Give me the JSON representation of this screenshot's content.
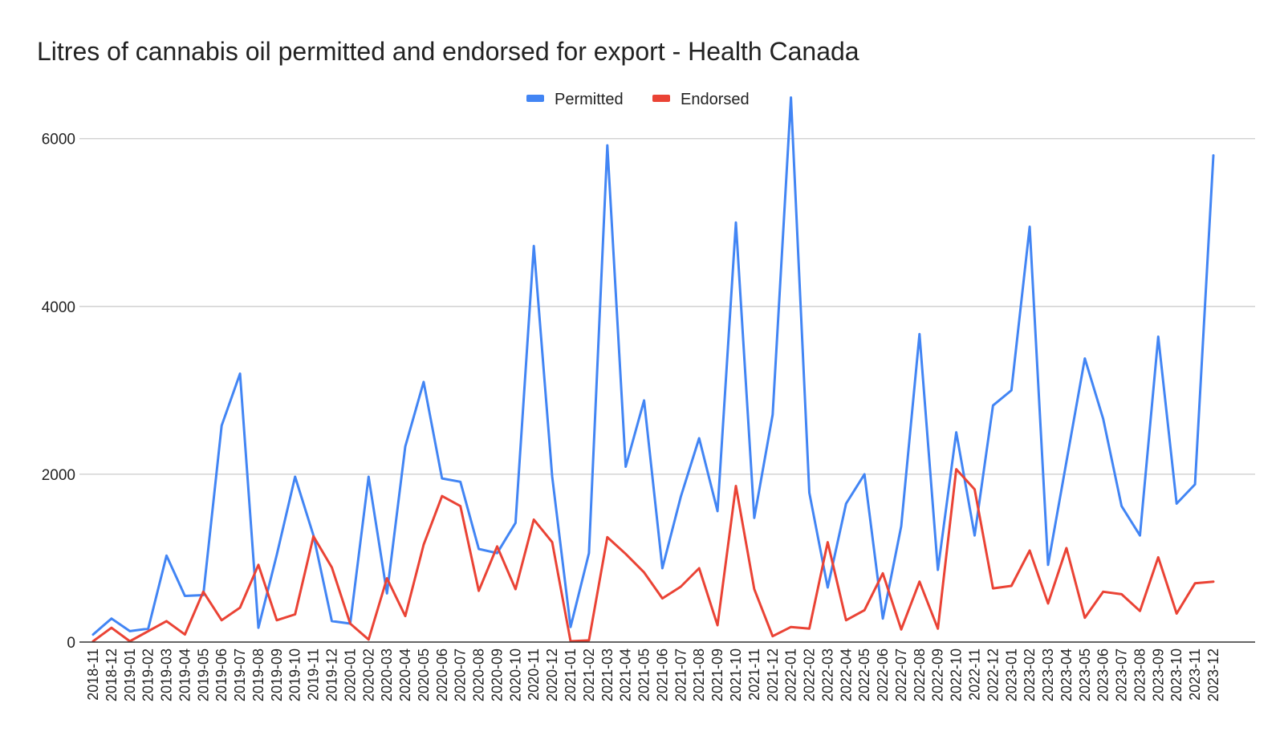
{
  "chart_data": {
    "type": "line",
    "title": "Litres of cannabis oil permitted and endorsed for export - Health Canada",
    "xlabel": "",
    "ylabel": "",
    "ylim": [
      0,
      6600
    ],
    "yticks": [
      0,
      2000,
      4000,
      6000
    ],
    "grid": true,
    "legend_position": "top",
    "categories": [
      "2018-11",
      "2018-12",
      "2019-01",
      "2019-02",
      "2019-03",
      "2019-04",
      "2019-05",
      "2019-06",
      "2019-07",
      "2019-08",
      "2019-09",
      "2019-10",
      "2019-11",
      "2019-12",
      "2020-01",
      "2020-02",
      "2020-03",
      "2020-04",
      "2020-05",
      "2020-06",
      "2020-07",
      "2020-08",
      "2020-09",
      "2020-10",
      "2020-11",
      "2020-12",
      "2021-01",
      "2021-02",
      "2021-03",
      "2021-04",
      "2021-05",
      "2021-06",
      "2021-07",
      "2021-08",
      "2021-09",
      "2021-10",
      "2021-11",
      "2021-12",
      "2022-01",
      "2022-02",
      "2022-03",
      "2022-04",
      "2022-05",
      "2022-06",
      "2022-07",
      "2022-08",
      "2022-09",
      "2022-10",
      "2022-11",
      "2022-12",
      "2023-01",
      "2023-02",
      "2023-03",
      "2023-04",
      "2023-05",
      "2023-06",
      "2023-07",
      "2023-08",
      "2023-09",
      "2023-10",
      "2023-11",
      "2023-12"
    ],
    "series": [
      {
        "name": "Permitted",
        "color": "#4285f4",
        "values": [
          90,
          280,
          130,
          160,
          1030,
          550,
          560,
          2580,
          3200,
          170,
          1040,
          1970,
          1270,
          250,
          220,
          1970,
          580,
          2330,
          3100,
          1950,
          1910,
          1110,
          1060,
          1420,
          4720,
          1970,
          180,
          1060,
          5920,
          2090,
          2880,
          880,
          1730,
          2430,
          1560,
          5000,
          1480,
          2710,
          6490,
          1780,
          650,
          1650,
          2000,
          280,
          1380,
          3670,
          860,
          2500,
          1270,
          2820,
          3000,
          4950,
          920,
          2150,
          3380,
          2660,
          1620,
          1270,
          3640,
          1650,
          1880,
          5800
        ]
      },
      {
        "name": "Endorsed",
        "color": "#ea4335",
        "values": [
          10,
          170,
          10,
          130,
          250,
          90,
          600,
          260,
          410,
          920,
          260,
          330,
          1260,
          890,
          220,
          30,
          760,
          310,
          1160,
          1740,
          1620,
          610,
          1140,
          630,
          1460,
          1190,
          10,
          20,
          1250,
          1050,
          830,
          520,
          660,
          880,
          200,
          1860,
          630,
          70,
          180,
          160,
          1190,
          260,
          380,
          820,
          150,
          720,
          160,
          2060,
          1820,
          640,
          670,
          1090,
          460,
          1120,
          290,
          600,
          570,
          370,
          1010,
          340,
          700,
          720
        ]
      }
    ]
  }
}
